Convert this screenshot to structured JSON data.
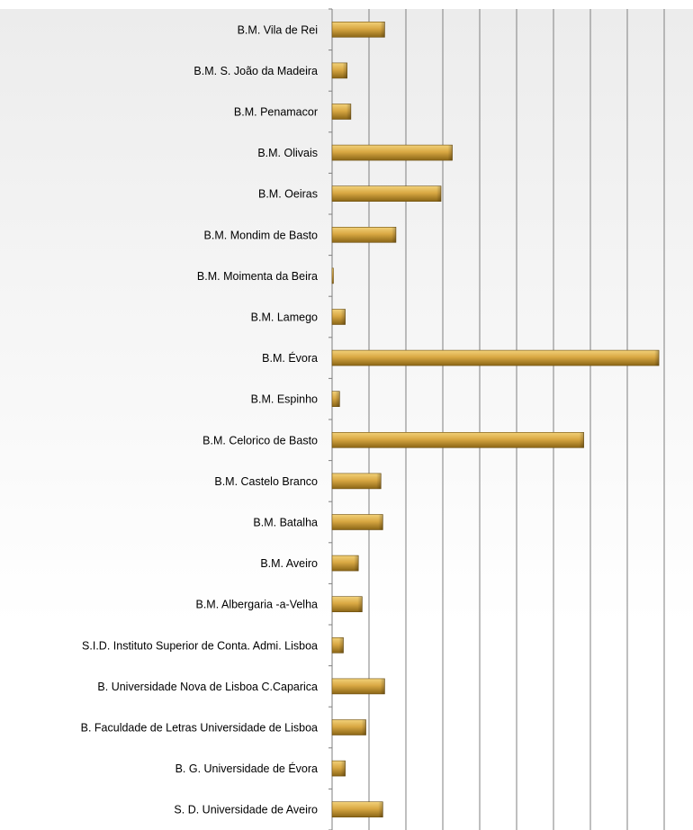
{
  "chart_data": {
    "type": "bar",
    "orientation": "horizontal",
    "title": "",
    "xlabel": "",
    "ylabel": "",
    "categories": [
      "B.M. Vila de Rei",
      "B.M. S. João da Madeira",
      "B.M. Penamacor",
      "B.M. Olivais",
      "B.M. Oeiras",
      "B.M. Mondim de Basto",
      "B.M. Moimenta da Beira",
      "B.M. Lamego",
      "B.M. Évora",
      "B.M. Espinho",
      "B.M. Celorico de Basto",
      "B.M. Castelo Branco",
      "B.M. Batalha",
      "B.M. Aveiro",
      "B.M. Albergaria -a-Velha",
      "S.I.D. Instituto Superior de Conta. Admi. Lisboa",
      "B. Universidade Nova de Lisboa C.Caparica",
      "B. Faculdade de Letras Universidade de Lisboa",
      "B. G. Universidade de Évora",
      "S. D. Universidade de Aveiro"
    ],
    "values": [
      14,
      4,
      5,
      32,
      29,
      17,
      0.3,
      3.5,
      87,
      2,
      67,
      13,
      13.5,
      7,
      8,
      3,
      14,
      9,
      3.5,
      13.5
    ],
    "xlim": [
      0,
      98
    ],
    "grid": true,
    "colors": {
      "bar_light": "#f2d27a",
      "bar_mid": "#d9a843",
      "bar_dark": "#8a6516",
      "bar_edge": "#6e4f10",
      "grid": "#7f7f7f",
      "axis": "#7f7f7f",
      "background_top": "#ececec",
      "background_bottom": "#ffffff"
    }
  }
}
